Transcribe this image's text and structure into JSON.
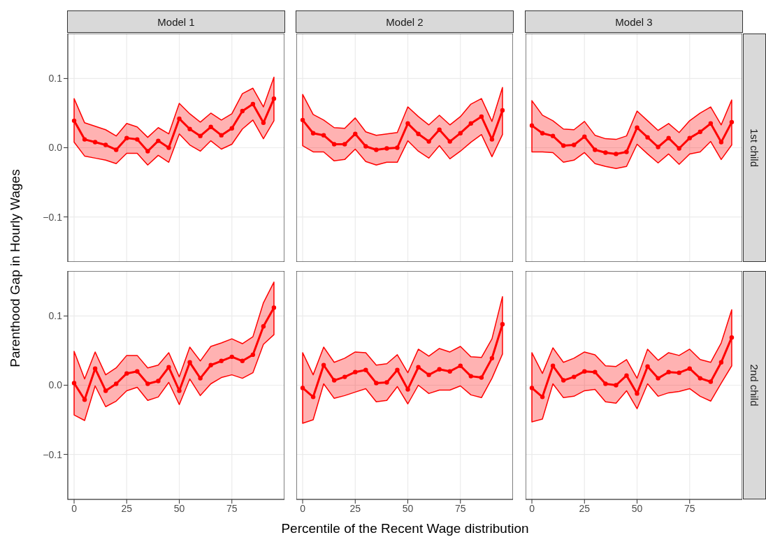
{
  "chart_data": [
    {
      "type": "line",
      "title": "Model 1",
      "ylabel": "Parenthood Gap in Hourly Wages",
      "x": [
        0,
        5,
        10,
        15,
        20,
        25,
        30,
        35,
        40,
        45,
        50,
        55,
        60,
        65,
        70,
        75,
        80,
        85,
        90,
        95
      ],
      "xlim": [
        -3,
        100
      ],
      "xticks": [
        0,
        25,
        50,
        75
      ],
      "ylim": [
        -0.165,
        0.165
      ],
      "yticks": [
        {
          "value": -0.1,
          "label": "−0.1"
        },
        {
          "value": 0,
          "label": "0.0"
        },
        {
          "value": 0.1,
          "label": "0.1"
        }
      ],
      "grid": true,
      "marker": "circle",
      "tick_labels": "y",
      "series": [
        {
          "color": "#ff0000",
          "values": [
            0.039,
            0.012,
            0.008,
            0.004,
            -0.003,
            0.014,
            0.012,
            -0.005,
            0.01,
            0.0,
            0.042,
            0.027,
            0.017,
            0.03,
            0.018,
            0.028,
            0.053,
            0.063,
            0.036,
            0.071
          ],
          "lower": [
            0.008,
            -0.012,
            -0.015,
            -0.018,
            -0.023,
            -0.008,
            -0.008,
            -0.025,
            -0.011,
            -0.021,
            0.02,
            0.004,
            -0.005,
            0.01,
            -0.002,
            0.005,
            0.027,
            0.04,
            0.013,
            0.039
          ],
          "upper": [
            0.071,
            0.036,
            0.031,
            0.026,
            0.017,
            0.035,
            0.03,
            0.015,
            0.029,
            0.02,
            0.064,
            0.049,
            0.037,
            0.05,
            0.04,
            0.049,
            0.078,
            0.086,
            0.059,
            0.102
          ]
        }
      ]
    },
    {
      "type": "line",
      "title": "Model 2",
      "x": [
        0,
        5,
        10,
        15,
        20,
        25,
        30,
        35,
        40,
        45,
        50,
        55,
        60,
        65,
        70,
        75,
        80,
        85,
        90,
        95
      ],
      "xlim": [
        -3,
        100
      ],
      "xticks": [
        0,
        25,
        50,
        75
      ],
      "ylim": [
        -0.165,
        0.165
      ],
      "yticks": [
        {
          "value": -0.1,
          "label": null
        },
        {
          "value": 0,
          "label": null
        },
        {
          "value": 0.1,
          "label": null
        }
      ],
      "grid": true,
      "marker": "circle",
      "tick_labels": false,
      "series": [
        {
          "color": "#ff0000",
          "values": [
            0.04,
            0.021,
            0.018,
            0.005,
            0.005,
            0.02,
            0.002,
            -0.003,
            -0.001,
            0.0,
            0.035,
            0.02,
            0.009,
            0.026,
            0.009,
            0.021,
            0.035,
            0.045,
            0.012,
            0.054
          ],
          "lower": [
            0.003,
            -0.006,
            -0.006,
            -0.019,
            -0.017,
            -0.002,
            -0.02,
            -0.025,
            -0.021,
            -0.021,
            0.01,
            -0.005,
            -0.015,
            0.003,
            -0.016,
            -0.005,
            0.008,
            0.019,
            -0.013,
            0.019
          ],
          "upper": [
            0.077,
            0.048,
            0.04,
            0.029,
            0.028,
            0.043,
            0.023,
            0.018,
            0.02,
            0.022,
            0.059,
            0.045,
            0.033,
            0.047,
            0.033,
            0.045,
            0.063,
            0.071,
            0.038,
            0.087
          ]
        }
      ]
    },
    {
      "type": "line",
      "title": "Model 3",
      "y2label": "1st child",
      "x": [
        0,
        5,
        10,
        15,
        20,
        25,
        30,
        35,
        40,
        45,
        50,
        55,
        60,
        65,
        70,
        75,
        80,
        85,
        90,
        95
      ],
      "xlim": [
        -3,
        100
      ],
      "xticks": [
        0,
        25,
        50,
        75
      ],
      "ylim": [
        -0.165,
        0.165
      ],
      "yticks": [
        {
          "value": -0.1,
          "label": null
        },
        {
          "value": 0,
          "label": null
        },
        {
          "value": 0.1,
          "label": null
        }
      ],
      "grid": true,
      "marker": "circle",
      "tick_labels": false,
      "series": [
        {
          "color": "#ff0000",
          "values": [
            0.032,
            0.021,
            0.017,
            0.003,
            0.004,
            0.016,
            -0.003,
            -0.007,
            -0.009,
            -0.006,
            0.029,
            0.015,
            0.001,
            0.014,
            -0.001,
            0.014,
            0.023,
            0.035,
            0.008,
            0.037
          ],
          "lower": [
            -0.006,
            -0.006,
            -0.007,
            -0.021,
            -0.018,
            -0.007,
            -0.023,
            -0.027,
            -0.03,
            -0.027,
            0.005,
            -0.009,
            -0.022,
            -0.009,
            -0.024,
            -0.009,
            -0.006,
            0.009,
            -0.017,
            0.004
          ],
          "upper": [
            0.068,
            0.047,
            0.039,
            0.027,
            0.026,
            0.038,
            0.018,
            0.013,
            0.012,
            0.017,
            0.053,
            0.039,
            0.025,
            0.035,
            0.022,
            0.039,
            0.05,
            0.059,
            0.033,
            0.069
          ]
        }
      ]
    },
    {
      "type": "line",
      "x": [
        0,
        5,
        10,
        15,
        20,
        25,
        30,
        35,
        40,
        45,
        50,
        55,
        60,
        65,
        70,
        75,
        80,
        85,
        90,
        95
      ],
      "xlim": [
        -3,
        100
      ],
      "xticks": [
        0,
        25,
        50,
        75
      ],
      "ylim": [
        -0.165,
        0.165
      ],
      "yticks": [
        {
          "value": -0.1,
          "label": "−0.1"
        },
        {
          "value": 0,
          "label": "0.0"
        },
        {
          "value": 0.1,
          "label": "0.1"
        }
      ],
      "grid": true,
      "marker": "circle",
      "series": [
        {
          "color": "#ff0000",
          "values": [
            0.003,
            -0.021,
            0.024,
            -0.008,
            0.002,
            0.017,
            0.02,
            0.002,
            0.006,
            0.026,
            -0.008,
            0.033,
            0.01,
            0.029,
            0.035,
            0.041,
            0.035,
            0.044,
            0.085,
            0.112
          ],
          "lower": [
            -0.043,
            -0.051,
            -0.001,
            -0.031,
            -0.023,
            -0.008,
            -0.003,
            -0.022,
            -0.017,
            0.004,
            -0.028,
            0.009,
            -0.015,
            0.002,
            0.011,
            0.015,
            0.01,
            0.018,
            0.059,
            0.073
          ],
          "upper": [
            0.049,
            0.009,
            0.048,
            0.015,
            0.025,
            0.043,
            0.043,
            0.025,
            0.029,
            0.047,
            0.012,
            0.055,
            0.035,
            0.056,
            0.061,
            0.067,
            0.06,
            0.07,
            0.119,
            0.149
          ]
        }
      ]
    },
    {
      "type": "line",
      "xlabel": "Percentile of the Recent Wage distribution",
      "x": [
        0,
        5,
        10,
        15,
        20,
        25,
        30,
        35,
        40,
        45,
        50,
        55,
        60,
        65,
        70,
        75,
        80,
        85,
        90,
        95
      ],
      "xlim": [
        -3,
        100
      ],
      "xticks": [
        0,
        25,
        50,
        75
      ],
      "ylim": [
        -0.165,
        0.165
      ],
      "yticks": [
        {
          "value": -0.1,
          "label": null
        },
        {
          "value": 0,
          "label": null
        },
        {
          "value": 0.1,
          "label": null
        }
      ],
      "grid": true,
      "marker": "circle",
      "tick_labels": "x",
      "series": [
        {
          "color": "#ff0000",
          "values": [
            -0.004,
            -0.017,
            0.029,
            0.007,
            0.012,
            0.019,
            0.022,
            0.003,
            0.004,
            0.022,
            -0.006,
            0.026,
            0.015,
            0.023,
            0.02,
            0.028,
            0.013,
            0.011,
            0.039,
            0.088
          ],
          "lower": [
            -0.055,
            -0.05,
            0.002,
            -0.019,
            -0.015,
            -0.01,
            -0.005,
            -0.024,
            -0.022,
            -0.002,
            -0.027,
            0.0,
            -0.012,
            -0.007,
            -0.007,
            -0.001,
            -0.014,
            -0.018,
            0.01,
            0.045
          ],
          "upper": [
            0.047,
            0.015,
            0.055,
            0.033,
            0.039,
            0.048,
            0.047,
            0.029,
            0.031,
            0.044,
            0.018,
            0.052,
            0.042,
            0.053,
            0.048,
            0.056,
            0.041,
            0.04,
            0.067,
            0.128
          ]
        }
      ]
    },
    {
      "type": "line",
      "y2label": "2nd child",
      "x": [
        0,
        5,
        10,
        15,
        20,
        25,
        30,
        35,
        40,
        45,
        50,
        55,
        60,
        65,
        70,
        75,
        80,
        85,
        90,
        95
      ],
      "xlim": [
        -3,
        100
      ],
      "xticks": [
        0,
        25,
        50,
        75
      ],
      "ylim": [
        -0.165,
        0.165
      ],
      "yticks": [
        {
          "value": -0.1,
          "label": null
        },
        {
          "value": 0,
          "label": null
        },
        {
          "value": 0.1,
          "label": null
        }
      ],
      "grid": true,
      "marker": "circle",
      "tick_labels": "x",
      "series": [
        {
          "color": "#ff0000",
          "values": [
            -0.004,
            -0.017,
            0.028,
            0.007,
            0.012,
            0.02,
            0.019,
            0.002,
            0.0,
            0.014,
            -0.012,
            0.027,
            0.01,
            0.019,
            0.018,
            0.024,
            0.01,
            0.005,
            0.033,
            0.069
          ],
          "lower": [
            -0.053,
            -0.049,
            0.002,
            -0.018,
            -0.016,
            -0.008,
            -0.006,
            -0.024,
            -0.026,
            -0.008,
            -0.034,
            0.002,
            -0.016,
            -0.011,
            -0.009,
            -0.005,
            -0.016,
            -0.023,
            0.003,
            0.028
          ],
          "upper": [
            0.047,
            0.017,
            0.054,
            0.033,
            0.039,
            0.048,
            0.044,
            0.028,
            0.027,
            0.037,
            0.01,
            0.052,
            0.036,
            0.047,
            0.043,
            0.052,
            0.037,
            0.033,
            0.061,
            0.109
          ]
        }
      ]
    }
  ]
}
